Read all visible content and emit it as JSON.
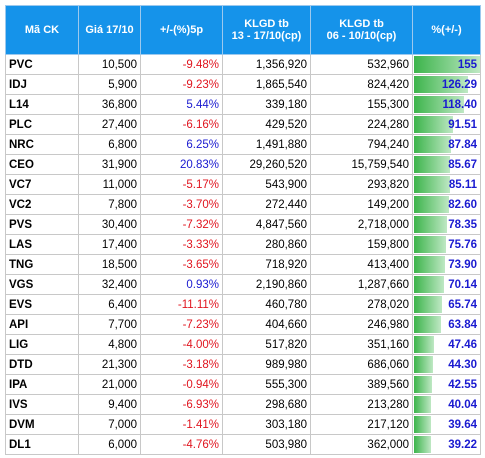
{
  "header": [
    "Mã CK",
    "Giá 17/10",
    "+/-(%)5p",
    "KLGD tb\n13 - 17/10(cp)",
    "KLGD tb\n06 - 10/10(cp)",
    "%(+/-)"
  ],
  "table": {
    "rows": [
      [
        "PVC",
        "10,500",
        "-9.48%",
        "1,356,920",
        "532,960",
        "155"
      ],
      [
        "IDJ",
        "5,900",
        "-9.23%",
        "1,865,540",
        "824,420",
        "126.29"
      ],
      [
        "L14",
        "36,800",
        "5.44%",
        "339,180",
        "155,300",
        "118.40"
      ],
      [
        "PLC",
        "27,400",
        "-6.16%",
        "429,520",
        "224,280",
        "91.51"
      ],
      [
        "NRC",
        "6,800",
        "6.25%",
        "1,491,880",
        "794,240",
        "87.84"
      ],
      [
        "CEO",
        "31,900",
        "20.83%",
        "29,260,520",
        "15,759,540",
        "85.67"
      ],
      [
        "VC7",
        "11,000",
        "-5.17%",
        "543,900",
        "293,820",
        "85.11"
      ],
      [
        "VC2",
        "7,800",
        "-3.70%",
        "272,440",
        "149,200",
        "82.60"
      ],
      [
        "PVS",
        "30,400",
        "-7.32%",
        "4,847,560",
        "2,718,000",
        "78.35"
      ],
      [
        "LAS",
        "17,400",
        "-3.33%",
        "280,860",
        "159,800",
        "75.76"
      ],
      [
        "TNG",
        "18,500",
        "-3.65%",
        "718,920",
        "413,400",
        "73.90"
      ],
      [
        "VGS",
        "32,400",
        "0.93%",
        "2,190,860",
        "1,287,660",
        "70.14"
      ],
      [
        "EVS",
        "6,400",
        "-11.11%",
        "460,780",
        "278,020",
        "65.74"
      ],
      [
        "API",
        "7,700",
        "-7.23%",
        "404,660",
        "246,980",
        "63.84"
      ],
      [
        "LIG",
        "4,800",
        "-4.00%",
        "517,820",
        "351,160",
        "47.46"
      ],
      [
        "DTD",
        "21,300",
        "-3.18%",
        "989,980",
        "686,060",
        "44.30"
      ],
      [
        "IPA",
        "21,000",
        "-0.94%",
        "555,300",
        "389,560",
        "42.55"
      ],
      [
        "IVS",
        "9,400",
        "-6.93%",
        "298,680",
        "213,280",
        "40.04"
      ],
      [
        "DVM",
        "7,000",
        "-1.41%",
        "303,180",
        "217,120",
        "39.64"
      ],
      [
        "DL1",
        "6,000",
        "-4.76%",
        "503,980",
        "362,000",
        "39.22"
      ]
    ]
  }
}
